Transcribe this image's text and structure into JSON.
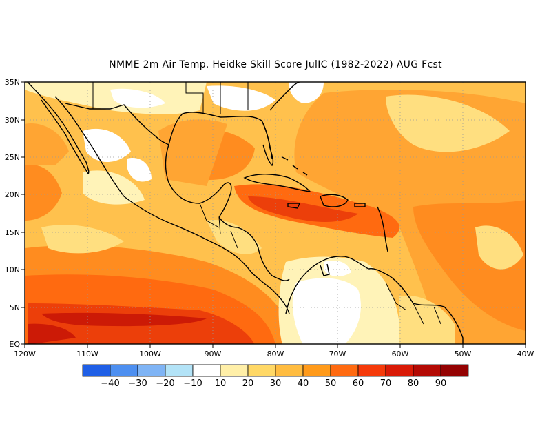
{
  "title": "NMME  2m Air Temp. Heidke Skill Score JulIC (1982-2022) AUG Fcst",
  "map": {
    "lat_labels": [
      "35N",
      "30N",
      "25N",
      "20N",
      "15N",
      "10N",
      "5N",
      "EQ"
    ],
    "lon_labels": [
      "120W",
      "110W",
      "100W",
      "90W",
      "80W",
      "70W",
      "60W",
      "50W",
      "40W"
    ],
    "lon_range": [
      -120,
      -40
    ],
    "lat_range": [
      0,
      35
    ],
    "gridlines": "dotted"
  },
  "colorbar": {
    "colors": [
      "#1f5fe6",
      "#4d8ff0",
      "#7fb4f5",
      "#b3e3f7",
      "#ffffff",
      "#ffefa8",
      "#ffd866",
      "#ffbc40",
      "#ff9a1a",
      "#ff6a10",
      "#f53a0a",
      "#d91a06",
      "#b40a04",
      "#940202"
    ],
    "labels": [
      "-40",
      "-30",
      "-20",
      "-10",
      "10",
      "20",
      "30",
      "40",
      "50",
      "60",
      "70",
      "80",
      "90"
    ]
  },
  "field_colors": {
    "white": "#ffffff",
    "c10": "#fff3b8",
    "c20": "#ffdf80",
    "c30": "#ffc14d",
    "c40": "#ffa533",
    "c50": "#ff8c1f",
    "c60": "#ff6a10",
    "c70": "#ec3f0a",
    "c80": "#cc1a06"
  }
}
